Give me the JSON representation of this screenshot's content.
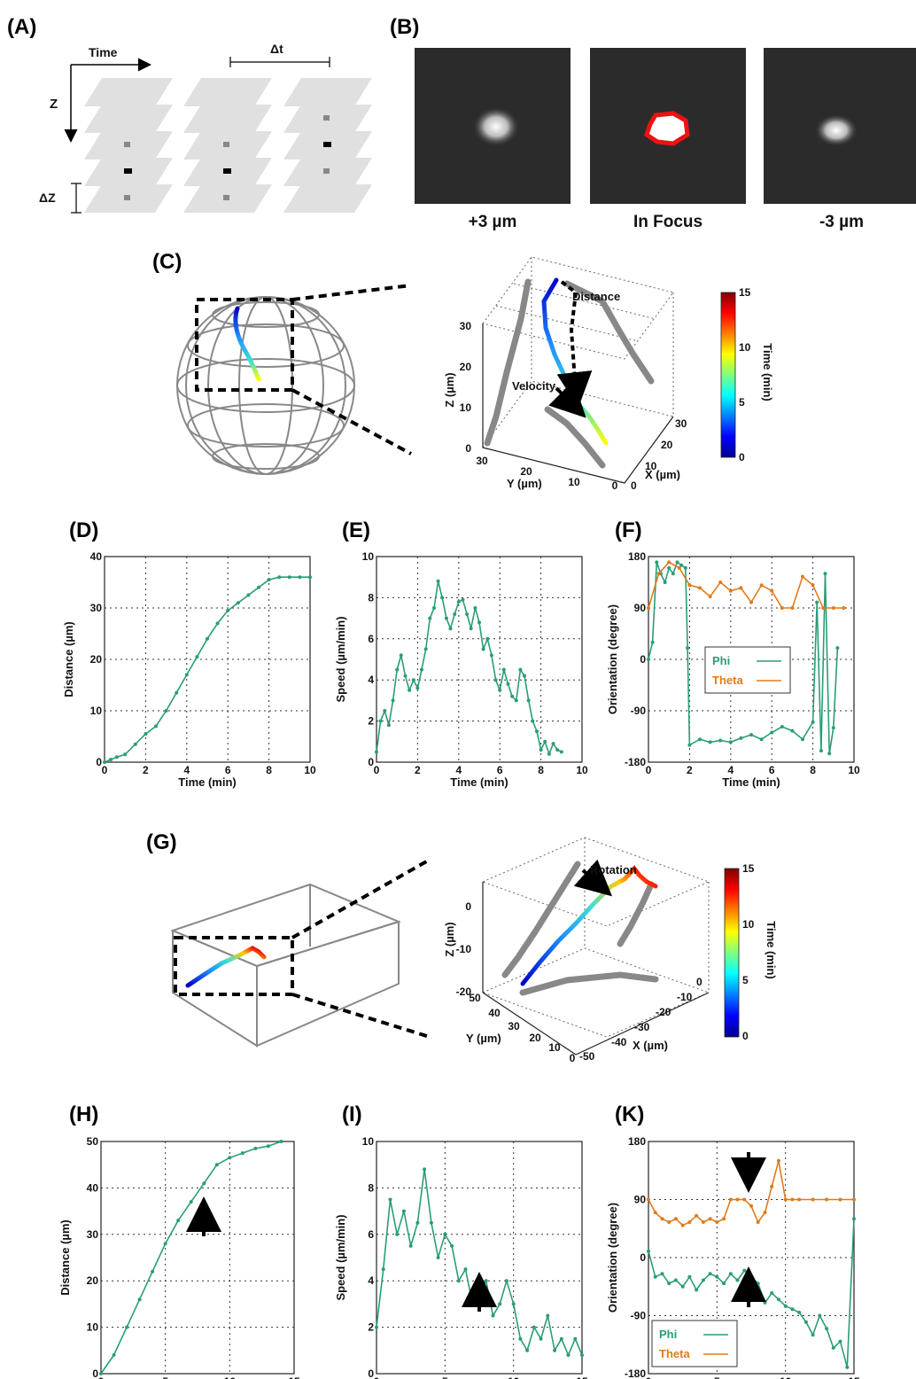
{
  "panel_labels": [
    "(A)",
    "(B)",
    "(C)",
    "(D)",
    "(E)",
    "(F)",
    "(G)",
    "(H)",
    "(I)",
    "(K)"
  ],
  "panelA": {
    "time_label": "Time",
    "z_label": "Z",
    "dt_label": "Δt",
    "dz_label": "ΔZ"
  },
  "panelB": {
    "captions": [
      "+3 µm",
      "In Focus",
      "-3 µm"
    ]
  },
  "panelC": {
    "annot_distance": "Distance",
    "annot_velocity": "Velocity",
    "zlabel": "Z (µm)",
    "ylabel": "Y (µm)",
    "xlabel": "X (µm)",
    "zticks": [
      "0",
      "10",
      "20",
      "30"
    ],
    "yticks": [
      "30",
      "20",
      "10",
      "0"
    ],
    "xticks": [
      "0",
      "10",
      "20",
      "30"
    ],
    "colorbar": {
      "label": "Time (min)",
      "ticks": [
        "0",
        "5",
        "10",
        "15"
      ]
    }
  },
  "panelG": {
    "annot_rotation": "Rotation",
    "zlabel": "Z (µm)",
    "ylabel": "Y (µm)",
    "xlabel": "X (µm)",
    "zticks": [
      "0",
      "-10",
      "-20"
    ],
    "yticks": [
      "50",
      "40",
      "30",
      "20",
      "10",
      "0"
    ],
    "xticks": [
      "-50",
      "-40",
      "-30",
      "-20",
      "-10",
      "0"
    ],
    "colorbar": {
      "label": "Time (min)",
      "ticks": [
        "0",
        "5",
        "10",
        "15"
      ]
    }
  },
  "colors": {
    "phi": "#2a9d78",
    "theta": "#e07b1a",
    "track_gray": "#8a8a8a",
    "highlight": "#ee1111"
  },
  "chart_data": [
    {
      "id": "D",
      "type": "line",
      "xlabel": "Time (min)",
      "ylabel": "Distance (µm)",
      "xlim": [
        0,
        10
      ],
      "ylim": [
        0,
        40
      ],
      "xticks": [
        0,
        2,
        4,
        6,
        8,
        10
      ],
      "yticks": [
        0,
        10,
        20,
        30,
        40
      ],
      "grid": true,
      "series": [
        {
          "color": "#2a9d78",
          "x": [
            0,
            0.3,
            0.6,
            1,
            1.5,
            2,
            2.5,
            3,
            3.5,
            4,
            4.5,
            5,
            5.5,
            6,
            6.5,
            7,
            7.5,
            8,
            8.5,
            9,
            9.5,
            10
          ],
          "y": [
            0,
            0.5,
            1,
            1.5,
            3.5,
            5.5,
            7,
            10,
            13.5,
            17,
            20.5,
            24,
            27,
            29.5,
            31,
            32.5,
            34,
            35.5,
            36,
            36,
            36,
            36
          ]
        }
      ]
    },
    {
      "id": "E",
      "type": "line",
      "xlabel": "Time (min)",
      "ylabel": "Speed (µm/min)",
      "xlim": [
        0,
        10
      ],
      "ylim": [
        0,
        10
      ],
      "xticks": [
        0,
        2,
        4,
        6,
        8,
        10
      ],
      "yticks": [
        0,
        2,
        4,
        6,
        8,
        10
      ],
      "grid": true,
      "series": [
        {
          "color": "#2a9d78",
          "x": [
            0,
            0.2,
            0.4,
            0.6,
            0.8,
            1,
            1.2,
            1.4,
            1.6,
            1.8,
            2,
            2.2,
            2.4,
            2.6,
            2.8,
            3,
            3.2,
            3.4,
            3.6,
            3.8,
            4,
            4.2,
            4.4,
            4.6,
            4.8,
            5,
            5.2,
            5.4,
            5.6,
            5.8,
            6,
            6.2,
            6.4,
            6.6,
            6.8,
            7,
            7.2,
            7.4,
            7.6,
            7.8,
            8,
            8.2,
            8.4,
            8.6,
            8.8,
            9
          ],
          "y": [
            0.5,
            2,
            2.5,
            1.8,
            3,
            4.5,
            5.2,
            4.2,
            3.5,
            4,
            3.6,
            4.5,
            5.5,
            7,
            7.5,
            8.8,
            8,
            7,
            6.5,
            7.2,
            7.8,
            7.9,
            7.2,
            6.5,
            7.5,
            6.8,
            5.5,
            6,
            5.2,
            4,
            3.5,
            4.5,
            3.8,
            3.2,
            3,
            4.5,
            4.2,
            3,
            2,
            1.5,
            0.6,
            1,
            0.4,
            0.9,
            0.6,
            0.5
          ]
        }
      ]
    },
    {
      "id": "F",
      "type": "line",
      "xlabel": "Time (min)",
      "ylabel": "Orientation (degree)",
      "xlim": [
        0,
        10
      ],
      "ylim": [
        -180,
        180
      ],
      "xticks": [
        0,
        2,
        4,
        6,
        8,
        10
      ],
      "yticks": [
        -180,
        -90,
        0,
        90,
        180
      ],
      "grid": true,
      "legend": "center-right",
      "series": [
        {
          "name": "Phi",
          "color": "#2a9d78",
          "x": [
            0,
            0.2,
            0.4,
            0.6,
            0.8,
            1,
            1.2,
            1.4,
            1.6,
            1.8,
            1.9,
            2,
            2.5,
            3,
            3.5,
            4,
            4.5,
            5,
            5.5,
            6,
            6.5,
            7,
            7.5,
            8,
            8.2,
            8.4,
            8.6,
            8.8,
            9,
            9.2
          ],
          "y": [
            0,
            30,
            170,
            150,
            135,
            160,
            150,
            170,
            165,
            160,
            20,
            -150,
            -140,
            -145,
            -142,
            -145,
            -138,
            -132,
            -140,
            -128,
            -118,
            -125,
            -140,
            -110,
            100,
            -160,
            150,
            -165,
            -120,
            20
          ]
        },
        {
          "name": "Theta",
          "color": "#e07b1a",
          "x": [
            0,
            0.5,
            1,
            1.5,
            2,
            2.5,
            3,
            3.5,
            4,
            4.5,
            5,
            5.5,
            6,
            6.5,
            7,
            7.5,
            8,
            8.5,
            9,
            9.5
          ],
          "y": [
            90,
            150,
            170,
            160,
            130,
            125,
            110,
            135,
            120,
            125,
            100,
            130,
            120,
            90,
            90,
            145,
            130,
            90,
            90,
            90
          ]
        }
      ]
    },
    {
      "id": "H",
      "type": "line",
      "xlabel": "Time (min)",
      "ylabel": "Distance (µm)",
      "xlim": [
        0,
        15
      ],
      "ylim": [
        0,
        50
      ],
      "xticks": [
        0,
        5,
        10,
        15
      ],
      "yticks": [
        0,
        10,
        20,
        30,
        40,
        50
      ],
      "grid": true,
      "series": [
        {
          "color": "#2a9d78",
          "x": [
            0,
            1,
            2,
            3,
            4,
            5,
            6,
            7,
            8,
            9,
            10,
            11,
            12,
            13,
            14
          ],
          "y": [
            0,
            4,
            10,
            16,
            22,
            28,
            33,
            37,
            41,
            45,
            46.5,
            47.5,
            48.5,
            49,
            50
          ]
        }
      ]
    },
    {
      "id": "I",
      "type": "line",
      "xlabel": "Time (min)",
      "ylabel": "Speed (µm/min)",
      "xlim": [
        0,
        15
      ],
      "ylim": [
        0,
        10
      ],
      "xticks": [
        0,
        5,
        10,
        15
      ],
      "yticks": [
        0,
        2,
        4,
        6,
        8,
        10
      ],
      "grid": true,
      "series": [
        {
          "color": "#2a9d78",
          "x": [
            0,
            0.5,
            1,
            1.5,
            2,
            2.5,
            3,
            3.5,
            4,
            4.5,
            5,
            5.5,
            6,
            6.5,
            7,
            7.5,
            8,
            8.5,
            9,
            9.5,
            10,
            10.5,
            11,
            11.5,
            12,
            12.5,
            13,
            13.5,
            14,
            14.5,
            15
          ],
          "y": [
            2,
            4.5,
            7.5,
            6,
            7,
            5.5,
            6.5,
            8.8,
            6.5,
            5,
            6,
            5.5,
            4,
            4.5,
            3,
            3.5,
            4,
            2.5,
            3,
            4,
            3,
            1.5,
            1,
            2,
            1.5,
            2.5,
            1,
            1.5,
            0.8,
            1.5,
            0.8
          ]
        }
      ]
    },
    {
      "id": "K",
      "type": "line",
      "xlabel": "Time (min)",
      "ylabel": "Orientation (degree)",
      "xlim": [
        0,
        15
      ],
      "ylim": [
        -180,
        180
      ],
      "xticks": [
        0,
        5,
        10,
        15
      ],
      "yticks": [
        -180,
        -90,
        0,
        90,
        180
      ],
      "grid": true,
      "legend": "bottom-left",
      "series": [
        {
          "name": "Phi",
          "color": "#2a9d78",
          "x": [
            0,
            0.5,
            1,
            1.5,
            2,
            2.5,
            3,
            3.5,
            4,
            4.5,
            5,
            5.5,
            6,
            6.5,
            7,
            7.5,
            8,
            8.5,
            9,
            9.5,
            10,
            10.5,
            11,
            11.5,
            12,
            12.5,
            13,
            13.5,
            14,
            14.5,
            15
          ],
          "y": [
            10,
            -30,
            -25,
            -40,
            -35,
            -45,
            -30,
            -50,
            -35,
            -25,
            -30,
            -40,
            -25,
            -35,
            -20,
            -30,
            -40,
            -70,
            -55,
            -65,
            -75,
            -80,
            -85,
            -100,
            -120,
            -90,
            -110,
            -140,
            -130,
            -170,
            60
          ]
        },
        {
          "name": "Theta",
          "color": "#e07b1a",
          "x": [
            0,
            0.5,
            1,
            1.5,
            2,
            2.5,
            3,
            3.5,
            4,
            4.5,
            5,
            5.5,
            6,
            6.5,
            7,
            7.5,
            8,
            8.5,
            9,
            9.5,
            10,
            10.5,
            11,
            12,
            13,
            14,
            15
          ],
          "y": [
            90,
            70,
            60,
            55,
            60,
            50,
            55,
            65,
            55,
            60,
            55,
            60,
            90,
            90,
            90,
            80,
            55,
            70,
            110,
            150,
            90,
            90,
            90,
            90,
            90,
            90,
            90
          ]
        }
      ]
    }
  ]
}
